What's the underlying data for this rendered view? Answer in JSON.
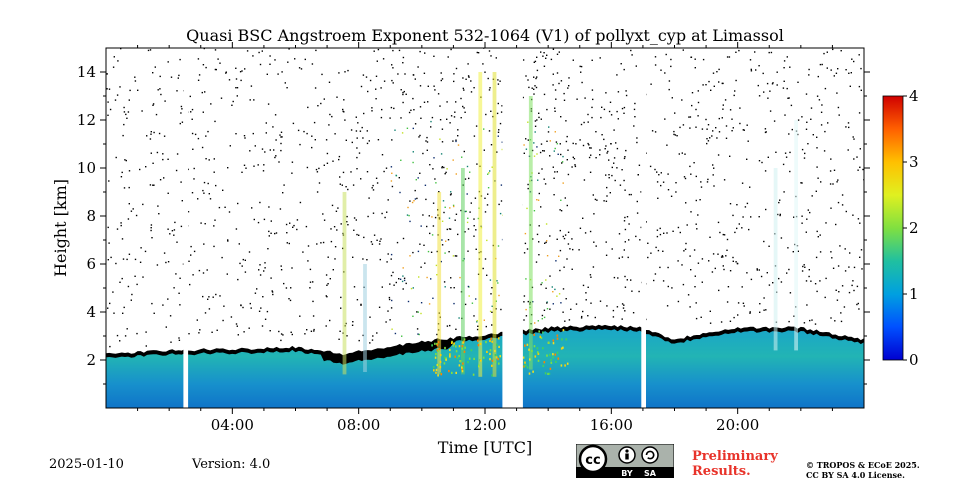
{
  "chart_data": {
    "type": "heatmap",
    "title": "Quasi BSC Angstroem Exponent 532-1064 (V1) of pollyxt_cyp at Limassol",
    "xlabel": "Time [UTC]",
    "ylabel": "Height [km]",
    "x_range_hours": [
      0,
      24
    ],
    "ylim": [
      0,
      15
    ],
    "x_ticks": [
      {
        "value": 4,
        "label": "04:00"
      },
      {
        "value": 8,
        "label": "08:00"
      },
      {
        "value": 12,
        "label": "12:00"
      },
      {
        "value": 16,
        "label": "16:00"
      },
      {
        "value": 20,
        "label": "20:00"
      }
    ],
    "y_ticks": [
      {
        "value": 2,
        "label": "2"
      },
      {
        "value": 4,
        "label": "4"
      },
      {
        "value": 6,
        "label": "6"
      },
      {
        "value": 8,
        "label": "8"
      },
      {
        "value": 10,
        "label": "10"
      },
      {
        "value": 12,
        "label": "12"
      },
      {
        "value": 14,
        "label": "14"
      }
    ],
    "colorbar": {
      "range": [
        0,
        4
      ],
      "ticks": [
        {
          "value": 0,
          "label": "0"
        },
        {
          "value": 1,
          "label": "1"
        },
        {
          "value": 2,
          "label": "2"
        },
        {
          "value": 3,
          "label": "3"
        },
        {
          "value": 4,
          "label": "4"
        }
      ],
      "colormap": "jet"
    },
    "boundary_layer_top_km": [
      [
        0,
        2.2
      ],
      [
        2,
        2.35
      ],
      [
        4,
        2.4
      ],
      [
        6,
        2.5
      ],
      [
        7.5,
        2.2
      ],
      [
        9,
        2.5
      ],
      [
        10.5,
        2.8
      ],
      [
        12,
        3.0
      ],
      [
        14,
        3.3
      ],
      [
        16,
        3.4
      ],
      [
        17,
        3.3
      ],
      [
        18,
        2.8
      ],
      [
        19,
        3.1
      ],
      [
        20,
        3.3
      ],
      [
        22,
        3.3
      ],
      [
        24,
        2.8
      ]
    ],
    "data_gaps_hours": [
      [
        2.45,
        2.6
      ],
      [
        12.55,
        13.2
      ],
      [
        16.95,
        17.1
      ]
    ],
    "grid": false
  },
  "footer": {
    "date": "2025-01-10",
    "version": "Version: 4.0",
    "prelim_line1": "Preliminary",
    "prelim_line2": "Results.",
    "copyright_line1": "© TROPOS & ECoE 2025.",
    "copyright_line2": "CC BY SA 4.0 License.",
    "badge_by": "BY",
    "badge_sa": "SA",
    "badge_cc": "cc"
  }
}
